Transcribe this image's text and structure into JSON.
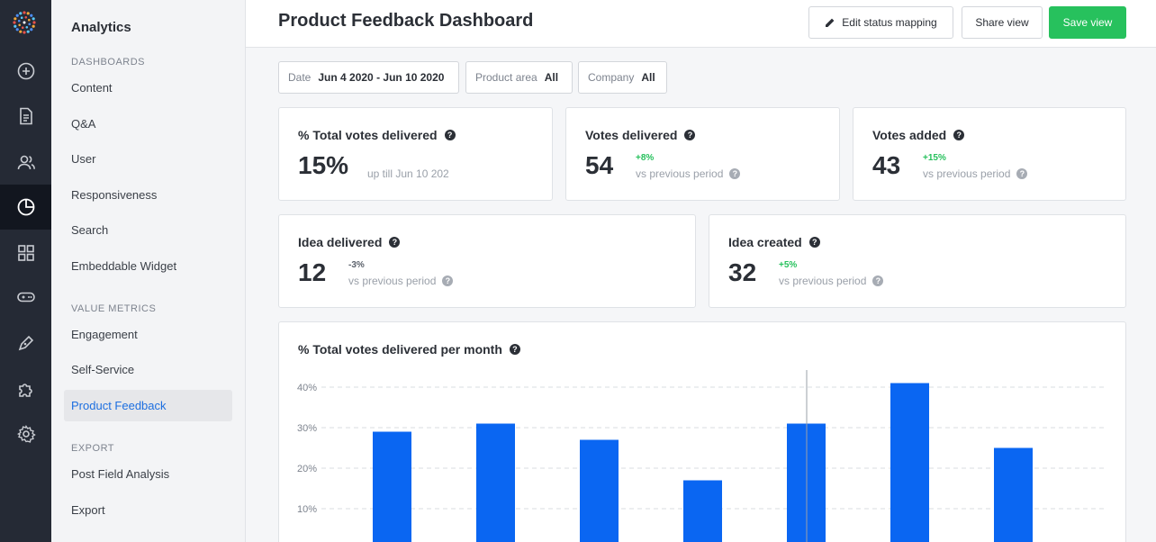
{
  "rail": {
    "items": [
      {
        "name": "add-icon"
      },
      {
        "name": "document-icon"
      },
      {
        "name": "users-icon"
      },
      {
        "name": "analytics-icon",
        "active": true
      },
      {
        "name": "grid-icon"
      },
      {
        "name": "gamepad-icon"
      },
      {
        "name": "pen-icon"
      },
      {
        "name": "puzzle-icon"
      },
      {
        "name": "gear-icon"
      }
    ]
  },
  "sidebar": {
    "title": "Analytics",
    "sections": [
      {
        "label": "DASHBOARDS",
        "items": [
          "Content",
          "Q&A",
          "User",
          "Responsiveness",
          "Search",
          "Embeddable Widget"
        ]
      },
      {
        "label": "VALUE METRICS",
        "items": [
          "Engagement",
          "Self-Service",
          "Product Feedback"
        ]
      },
      {
        "label": "EXPORT",
        "items": [
          "Post Field Analysis",
          "Export"
        ]
      }
    ],
    "active_item": "Product Feedback"
  },
  "header": {
    "title": "Product Feedback Dashboard",
    "edit_label": "Edit status mapping",
    "share_label": "Share view",
    "save_label": "Save view"
  },
  "filters": {
    "date_label": "Date",
    "date_value": "Jun 4 2020 - Jun 10 2020",
    "area_label": "Product area",
    "area_value": "All",
    "company_label": "Company",
    "company_value": "All"
  },
  "metrics": {
    "total": {
      "title": "% Total votes delivered",
      "value": "15%",
      "note": "up till Jun 10 202"
    },
    "delivered": {
      "title": "Votes delivered",
      "value": "54",
      "delta": "+8%",
      "vs": "vs previous period"
    },
    "added": {
      "title": "Votes added",
      "value": "43",
      "delta": "+15%",
      "vs": "vs previous period"
    },
    "idea_delivered": {
      "title": "Idea delivered",
      "value": "12",
      "delta": "-3%",
      "vs": "vs previous period"
    },
    "idea_created": {
      "title": "Idea created",
      "value": "32",
      "delta": "+5%",
      "vs": "vs previous period"
    }
  },
  "colors": {
    "accent": "#1d6fe0",
    "bar": "#0a66f2",
    "positive": "#27c15d",
    "rail": "#252a35"
  },
  "chart_data": {
    "type": "bar",
    "title": "% Total votes delivered per month",
    "yticks": [
      "10%",
      "20%",
      "30%",
      "40%"
    ],
    "ylim": [
      0,
      40
    ],
    "values": [
      29,
      31,
      27,
      17,
      31,
      41,
      25
    ],
    "grid": true
  }
}
